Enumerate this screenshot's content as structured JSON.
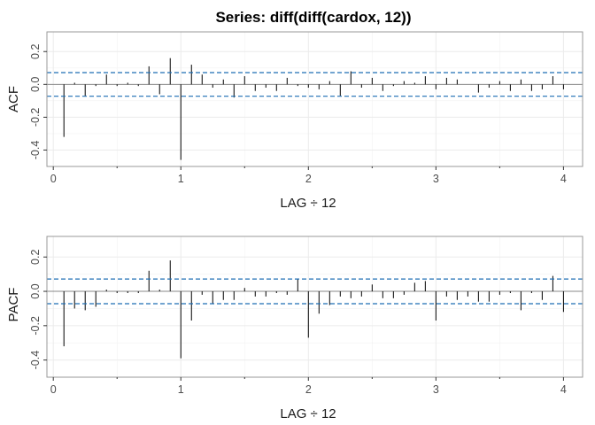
{
  "chart_data": [
    {
      "type": "bar",
      "title": "Series:  diff(diff(cardox, 12))",
      "ylabel": "ACF",
      "xlabel": "LAG ÷ 12",
      "xlim": [
        -0.05,
        4.15
      ],
      "ylim": [
        -0.5,
        0.32
      ],
      "xticks": [
        0,
        1,
        2,
        3,
        4
      ],
      "yticks": [
        0.2,
        0.0,
        -0.2,
        -0.4
      ],
      "ytick_labels": [
        "0.2",
        "0.0",
        "-0.2",
        "-0.4"
      ],
      "grid": true,
      "confidence_band": [
        0.072,
        -0.072
      ],
      "colors": {
        "bars": "#000000",
        "band": "#1f6eb4",
        "grid": "#ebebeb",
        "zero": "#888888"
      },
      "lags": [
        0.0833,
        0.1667,
        0.25,
        0.3333,
        0.4167,
        0.5,
        0.5833,
        0.6667,
        0.75,
        0.8333,
        0.9167,
        1.0,
        1.0833,
        1.1667,
        1.25,
        1.3333,
        1.4167,
        1.5,
        1.5833,
        1.6667,
        1.75,
        1.8333,
        1.9167,
        2.0,
        2.0833,
        2.1667,
        2.25,
        2.3333,
        2.4167,
        2.5,
        2.5833,
        2.6667,
        2.75,
        2.8333,
        2.9167,
        3.0,
        3.0833,
        3.1667,
        3.25,
        3.3333,
        3.4167,
        3.5,
        3.5833,
        3.6667,
        3.75,
        3.8333,
        3.9167,
        4.0
      ],
      "values": [
        -0.32,
        0.01,
        -0.07,
        -0.01,
        0.06,
        -0.01,
        0.01,
        -0.01,
        0.11,
        -0.06,
        0.16,
        -0.46,
        0.12,
        0.06,
        -0.02,
        0.03,
        -0.08,
        0.05,
        -0.04,
        -0.02,
        -0.04,
        0.04,
        -0.01,
        -0.02,
        -0.03,
        0.02,
        -0.07,
        0.08,
        -0.02,
        0.04,
        -0.04,
        -0.01,
        0.02,
        0.01,
        0.05,
        -0.03,
        0.04,
        0.03,
        0.0,
        -0.05,
        -0.02,
        0.02,
        -0.04,
        0.03,
        -0.04,
        -0.03,
        0.05,
        -0.03
      ]
    },
    {
      "type": "bar",
      "title": "",
      "ylabel": "PACF",
      "xlabel": "LAG ÷ 12",
      "xlim": [
        -0.05,
        4.15
      ],
      "ylim": [
        -0.5,
        0.32
      ],
      "xticks": [
        0,
        1,
        2,
        3,
        4
      ],
      "yticks": [
        0.2,
        0.0,
        -0.2,
        -0.4
      ],
      "ytick_labels": [
        "0.2",
        "0.0",
        "-0.2",
        "-0.4"
      ],
      "grid": true,
      "confidence_band": [
        0.072,
        -0.072
      ],
      "colors": {
        "bars": "#000000",
        "band": "#1f6eb4",
        "grid": "#ebebeb",
        "zero": "#888888"
      },
      "lags": [
        0.0833,
        0.1667,
        0.25,
        0.3333,
        0.4167,
        0.5,
        0.5833,
        0.6667,
        0.75,
        0.8333,
        0.9167,
        1.0,
        1.0833,
        1.1667,
        1.25,
        1.3333,
        1.4167,
        1.5,
        1.5833,
        1.6667,
        1.75,
        1.8333,
        1.9167,
        2.0,
        2.0833,
        2.1667,
        2.25,
        2.3333,
        2.4167,
        2.5,
        2.5833,
        2.6667,
        2.75,
        2.8333,
        2.9167,
        3.0,
        3.0833,
        3.1667,
        3.25,
        3.3333,
        3.4167,
        3.5,
        3.5833,
        3.6667,
        3.75,
        3.8333,
        3.9167,
        4.0
      ],
      "values": [
        -0.32,
        -0.1,
        -0.11,
        -0.09,
        0.01,
        -0.01,
        -0.01,
        -0.01,
        0.12,
        0.01,
        0.18,
        -0.39,
        -0.17,
        -0.02,
        -0.07,
        -0.05,
        -0.05,
        0.02,
        -0.03,
        -0.03,
        -0.01,
        -0.02,
        0.07,
        -0.27,
        -0.13,
        -0.08,
        -0.03,
        -0.04,
        -0.03,
        0.04,
        -0.04,
        -0.04,
        -0.02,
        0.05,
        0.06,
        -0.17,
        -0.03,
        -0.05,
        -0.03,
        -0.06,
        -0.06,
        -0.02,
        -0.01,
        -0.11,
        -0.01,
        -0.05,
        0.09,
        -0.12
      ]
    }
  ]
}
